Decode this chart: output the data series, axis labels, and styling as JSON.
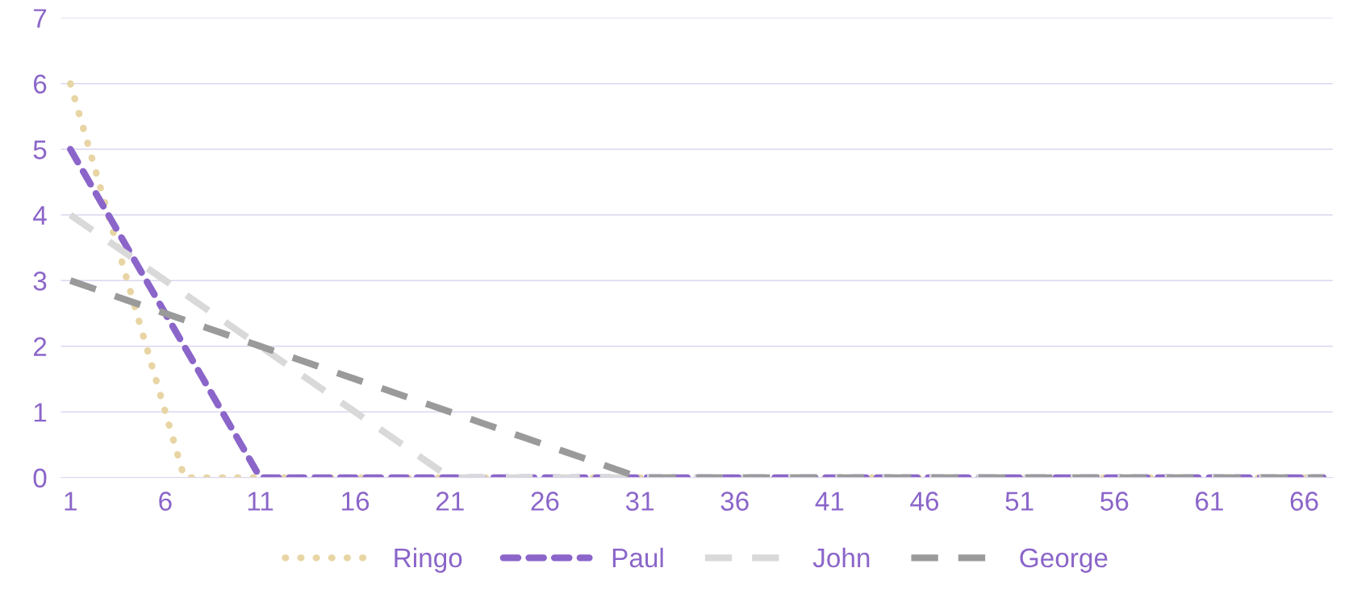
{
  "chart_data": {
    "type": "line",
    "categories": [
      "1",
      null,
      null,
      null,
      null,
      "6",
      null,
      null,
      null,
      null,
      "11",
      null,
      null,
      null,
      null,
      "16",
      null,
      null,
      null,
      null,
      "21",
      null,
      null,
      null,
      null,
      "26",
      null,
      null,
      null,
      null,
      "31",
      null,
      null,
      null,
      null,
      "36",
      null,
      null,
      null,
      null,
      "41",
      null,
      null,
      null,
      null,
      "46",
      null,
      null,
      null,
      null,
      "51",
      null,
      null,
      null,
      null,
      "56",
      null,
      null,
      null,
      null,
      "61",
      null,
      null,
      null,
      null,
      "66",
      null
    ],
    "series": [
      {
        "name": "Ringo",
        "color": "#e8d5a4",
        "line_style": "dotted",
        "values": [
          6,
          5,
          4,
          3,
          2,
          1,
          0,
          0,
          0,
          0,
          0,
          0,
          0,
          0,
          0,
          0,
          0,
          0,
          0,
          0,
          0,
          0,
          0,
          0,
          0,
          0,
          0,
          0,
          0,
          0,
          0,
          0,
          0,
          0,
          0,
          0,
          0,
          0,
          0,
          0,
          0,
          0,
          0,
          0,
          0,
          0,
          0,
          0,
          0,
          0,
          0,
          0,
          0,
          0,
          0,
          0,
          0,
          0,
          0,
          0,
          0,
          0,
          0,
          0,
          0,
          0,
          0
        ]
      },
      {
        "name": "Paul",
        "color": "#8b65c9",
        "line_style": "dashed",
        "values": [
          5,
          4.5,
          4,
          3.5,
          3,
          2.5,
          2,
          1.5,
          1,
          0.5,
          0,
          0,
          0,
          0,
          0,
          0,
          0,
          0,
          0,
          0,
          0,
          0,
          0,
          0,
          0,
          0,
          0,
          0,
          0,
          0,
          0,
          0,
          0,
          0,
          0,
          0,
          0,
          0,
          0,
          0,
          0,
          0,
          0,
          0,
          0,
          0,
          0,
          0,
          0,
          0,
          0,
          0,
          0,
          0,
          0,
          0,
          0,
          0,
          0,
          0,
          0,
          0,
          0,
          0,
          0,
          0,
          0
        ]
      },
      {
        "name": "John",
        "color": "#d9d9d9",
        "line_style": "longdash",
        "values": [
          4,
          3.8,
          3.6,
          3.4,
          3.2,
          3,
          2.8,
          2.6,
          2.4,
          2.2,
          2,
          1.8,
          1.6,
          1.4,
          1.2,
          1,
          0.8,
          0.6,
          0.4,
          0.2,
          0,
          0,
          0,
          0,
          0,
          0,
          0,
          0,
          0,
          0,
          0,
          0,
          0,
          0,
          0,
          0,
          0,
          0,
          0,
          0,
          0,
          0,
          0,
          0,
          0,
          0,
          0,
          0,
          0,
          0,
          0,
          0,
          0,
          0,
          0,
          0,
          0,
          0,
          0,
          0,
          0,
          0,
          0,
          0,
          0,
          0,
          0
        ]
      },
      {
        "name": "George",
        "color": "#9a9a9a",
        "line_style": "longdash",
        "values": [
          3,
          2.9,
          2.8,
          2.7,
          2.6,
          2.5,
          2.4,
          2.3,
          2.2,
          2.1,
          2,
          1.9,
          1.8,
          1.7,
          1.6,
          1.5,
          1.4,
          1.3,
          1.2,
          1.1,
          1,
          0.9,
          0.8,
          0.7,
          0.6,
          0.5,
          0.4,
          0.3,
          0.2,
          0.1,
          0,
          0,
          0,
          0,
          0,
          0,
          0,
          0,
          0,
          0,
          0,
          0,
          0,
          0,
          0,
          0,
          0,
          0,
          0,
          0,
          0,
          0,
          0,
          0,
          0,
          0,
          0,
          0,
          0,
          0,
          0,
          0,
          0,
          0,
          0,
          0,
          0
        ]
      }
    ],
    "ylim": [
      0,
      7
    ],
    "yticks": [
      0,
      1,
      2,
      3,
      4,
      5,
      6,
      7
    ],
    "grid": "y",
    "legend": "bottom"
  }
}
